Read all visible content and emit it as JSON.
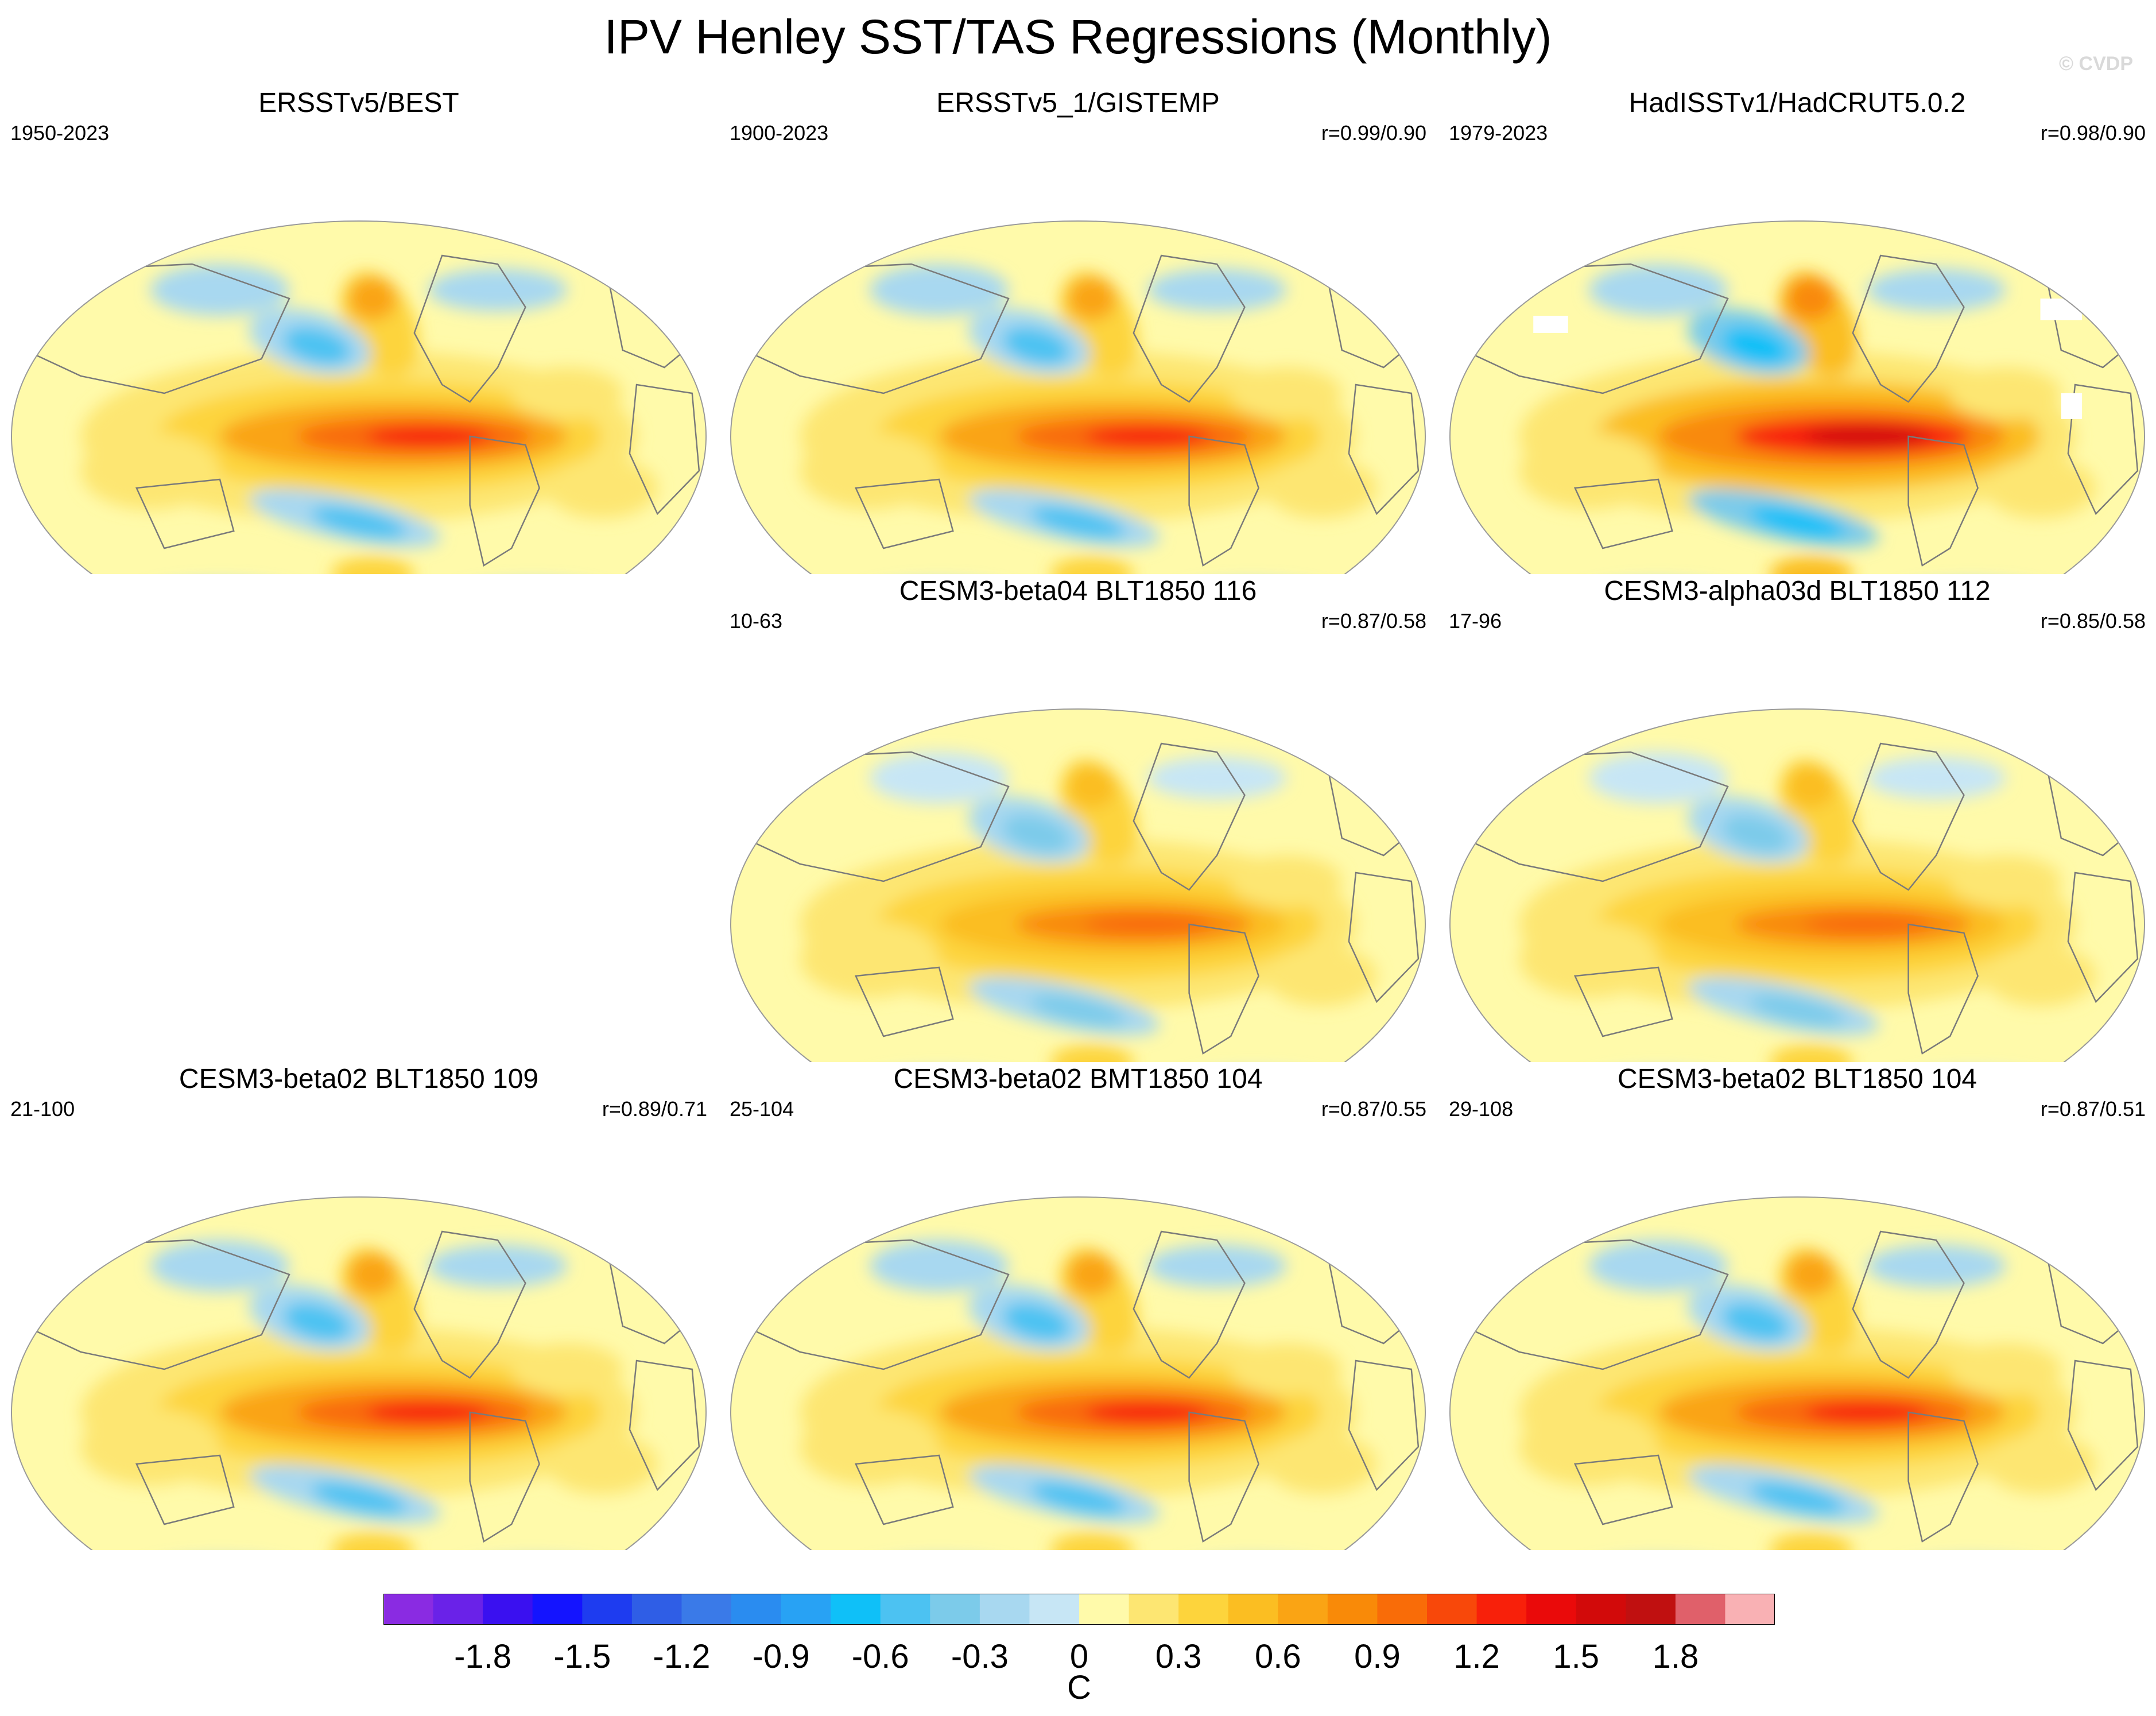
{
  "figure": {
    "title": "IPV Henley SST/TAS Regressions (Monthly)",
    "watermark": "© CVDP"
  },
  "chart_data": {
    "type": "heatmap",
    "projection": "Robinson (global)",
    "variable": "SST/TAS regression onto IPV Henley index",
    "units": "C",
    "panels": [
      {
        "title": "ERSSTv5/BEST",
        "period": "1950-2023",
        "correlation": "",
        "pattern": "obs",
        "ocean_warm_peak": 1.2
      },
      {
        "title": "ERSSTv5_1/GISTEMP",
        "period": "1900-2023",
        "correlation": "r=0.99/0.90",
        "pattern": "obs",
        "ocean_warm_peak": 1.2
      },
      {
        "title": "HadISSTv1/HadCRUT5.0.2",
        "period": "1979-2023",
        "correlation": "r=0.98/0.90",
        "pattern": "obs_gaps",
        "ocean_warm_peak": 1.5
      },
      {
        "title": "CESM3-beta04 BLT1850 116",
        "period": "10-63",
        "correlation": "r=0.87/0.58",
        "pattern": "model",
        "ocean_warm_peak": 1.0
      },
      {
        "title": "CESM3-alpha03d BLT1850 112",
        "period": "17-96",
        "correlation": "r=0.85/0.58",
        "pattern": "model",
        "ocean_warm_peak": 1.0
      },
      {
        "title": "CESM3-beta02 BLT1850 109",
        "period": "21-100",
        "correlation": "r=0.89/0.71",
        "pattern": "model",
        "ocean_warm_peak": 1.2
      },
      {
        "title": "CESM3-beta02 BMT1850 104",
        "period": "25-104",
        "correlation": "r=0.87/0.55",
        "pattern": "model",
        "ocean_warm_peak": 1.2
      },
      {
        "title": "CESM3-beta02 BLT1850 104",
        "period": "29-108",
        "correlation": "r=0.87/0.51",
        "pattern": "model",
        "ocean_warm_peak": 1.2
      }
    ],
    "colorbar": {
      "levels": [
        -1.9,
        -1.8,
        -1.65,
        -1.5,
        -1.35,
        -1.2,
        -1.05,
        -0.9,
        -0.75,
        -0.6,
        -0.45,
        -0.3,
        -0.15,
        0,
        0.15,
        0.3,
        0.45,
        0.6,
        0.75,
        0.9,
        1.05,
        1.2,
        1.35,
        1.5,
        1.65,
        1.8,
        1.95
      ],
      "colors": [
        "#8a2be2",
        "#6a22e8",
        "#3a10f0",
        "#1414ff",
        "#1e3cf0",
        "#2f5ee6",
        "#3a7ae8",
        "#2a8cf0",
        "#28a2f4",
        "#0fc0f8",
        "#4cc2f2",
        "#7ccbea",
        "#a8d8f0",
        "#c7e6f5",
        "#fffaaa",
        "#fde672",
        "#fdd43c",
        "#fbbe22",
        "#faa414",
        "#f98a08",
        "#f96c08",
        "#f8480a",
        "#f8200a",
        "#ea0a0a",
        "#d20a0a",
        "#c01010",
        "#e0606a",
        "#f9b1b4"
      ],
      "tick_labels": [
        "-1.8",
        "-1.5",
        "-1.2",
        "-0.9",
        "-0.6",
        "-0.3",
        "0",
        "0.3",
        "0.6",
        "0.9",
        "1.2",
        "1.5",
        "1.8"
      ],
      "label": "C"
    }
  }
}
